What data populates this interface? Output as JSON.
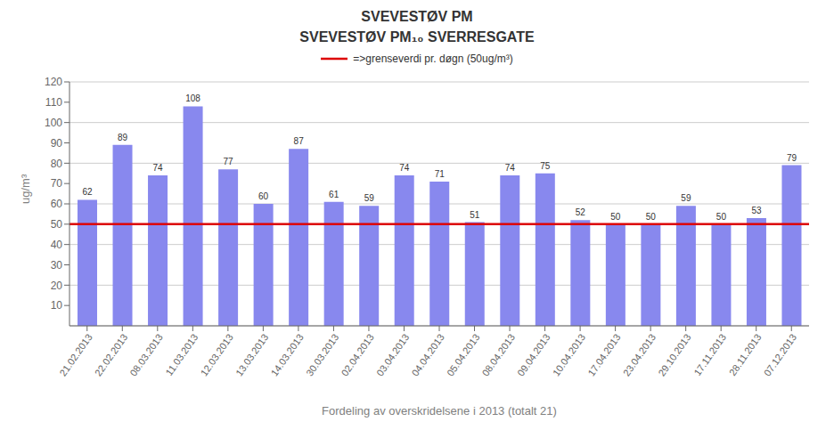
{
  "chart_data": {
    "type": "bar",
    "title": "SVEVESTØV PM₁₀ SVERRESGATE",
    "annotations": [
      "SVEVESTØV PM"
    ],
    "xlabel": "Fordeling av overskridelsene i 2013 (totalt 21)",
    "ylabel": "ug/m³",
    "categories": [
      "21.02.2013",
      "22.02.2013",
      "08.03.2013",
      "11.03.2013",
      "12.03.2013",
      "13.03.2013",
      "14.03.2013",
      "30.03.2013",
      "02.04.2013",
      "03.04.2013",
      "04.04.2013",
      "05.04.2013",
      "08.04.2013",
      "09.04.2013",
      "10.04.2013",
      "17.04.2013",
      "23.04.2013",
      "29.10.2013",
      "17.11.2013",
      "28.11.2013",
      "07.12.2013"
    ],
    "values": [
      62,
      89,
      74,
      108,
      77,
      60,
      87,
      61,
      59,
      74,
      71,
      51,
      74,
      75,
      52,
      50,
      50,
      59,
      50,
      53,
      79
    ],
    "color": "#8888ee",
    "threshold": {
      "value": 50,
      "name": "=>grenseverdi pr. døgn (50ug/m³)",
      "color": "#dd0000"
    },
    "ylim": [
      0,
      120
    ],
    "yticks": [
      10,
      20,
      30,
      40,
      50,
      60,
      70,
      80,
      90,
      100,
      110,
      120
    ],
    "grid": true,
    "legend": "top",
    "data_labels": true
  }
}
